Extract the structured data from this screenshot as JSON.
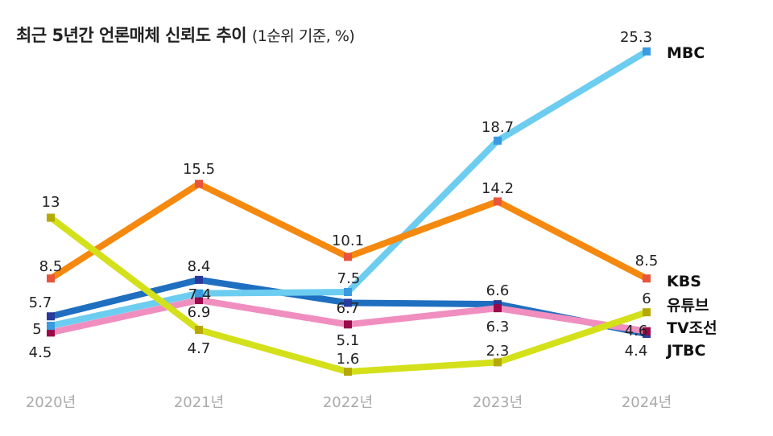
{
  "chart_data": {
    "type": "line",
    "title": "최근 5년간 언론매체 신뢰도 추이",
    "subtitle": "(1순위 기준, %)",
    "categories": [
      "2020년",
      "2021년",
      "2022년",
      "2023년",
      "2024년"
    ],
    "ylim": [
      0,
      29
    ],
    "grid": false,
    "legend": "right (end-of-line labels)",
    "series": [
      {
        "name": "MBC",
        "values": [
          5,
          7.4,
          7.5,
          18.7,
          25.3
        ],
        "labels": [
          "5",
          "7.4",
          "7.5",
          "18.7",
          "25.3"
        ],
        "color": "#6ccdf0",
        "marker": "#3a9be0"
      },
      {
        "name": "KBS",
        "values": [
          8.5,
          15.5,
          10.1,
          14.2,
          8.5
        ],
        "labels": [
          "8.5",
          "15.5",
          "10.1",
          "14.2",
          "8.5"
        ],
        "color": "#f5890f",
        "marker": "#e8553a"
      },
      {
        "name": "유튜브",
        "values": [
          13,
          4.7,
          1.6,
          2.3,
          6
        ],
        "labels": [
          "13",
          "4.7",
          "1.6",
          "2.3",
          "6"
        ],
        "color": "#d4e01a",
        "marker": "#b5a800"
      },
      {
        "name": "TV조선",
        "values": [
          4.5,
          6.9,
          5.1,
          6.3,
          4.6
        ],
        "labels": [
          "4.5",
          "6.9",
          "5.1",
          "6.3",
          "4.6"
        ],
        "color": "#f08ec0",
        "marker": "#9a0a4a"
      },
      {
        "name": "JTBC",
        "values": [
          5.7,
          8.4,
          6.7,
          6.6,
          4.4
        ],
        "labels": [
          "5.7",
          "8.4",
          "6.7",
          "6.6",
          "4.4"
        ],
        "color": "#1f6fc0",
        "marker": "#2a3a9a"
      }
    ]
  }
}
